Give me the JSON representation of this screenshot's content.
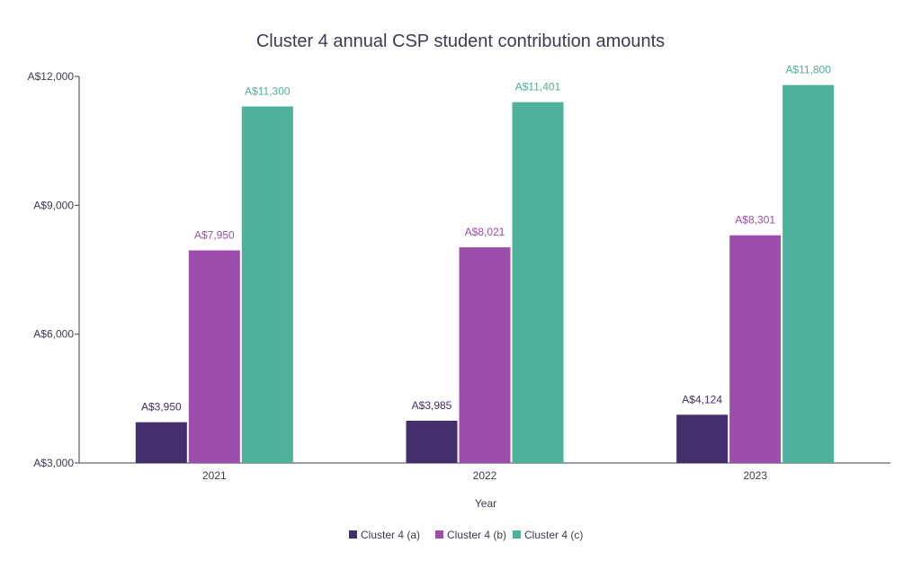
{
  "chart_data": {
    "type": "bar",
    "title": "Cluster 4 annual CSP student contribution amounts",
    "xlabel": "Year",
    "ylabel": "",
    "categories": [
      "2021",
      "2022",
      "2023"
    ],
    "series": [
      {
        "name": "Cluster 4 (a)",
        "color": "#432f6b",
        "values": [
          3950,
          3985,
          4124
        ],
        "labels": [
          "A$3,950",
          "A$3,985",
          "A$4,124"
        ]
      },
      {
        "name": "Cluster 4 (b)",
        "color": "#9d4dab",
        "values": [
          7950,
          8021,
          8301
        ],
        "labels": [
          "A$7,950",
          "A$8,021",
          "A$8,301"
        ]
      },
      {
        "name": "Cluster 4 (c)",
        "color": "#4fb19a",
        "values": [
          11300,
          11401,
          11800
        ],
        "labels": [
          "A$11,300",
          "A$11,401",
          "A$11,800"
        ]
      }
    ],
    "ylim": [
      3000,
      12000
    ],
    "yticks": [
      3000,
      6000,
      9000,
      12000
    ],
    "ytick_labels": [
      "A$3,000",
      "A$6,000",
      "A$9,000",
      "A$12,000"
    ],
    "grid": false,
    "legend_position": "bottom-center"
  }
}
